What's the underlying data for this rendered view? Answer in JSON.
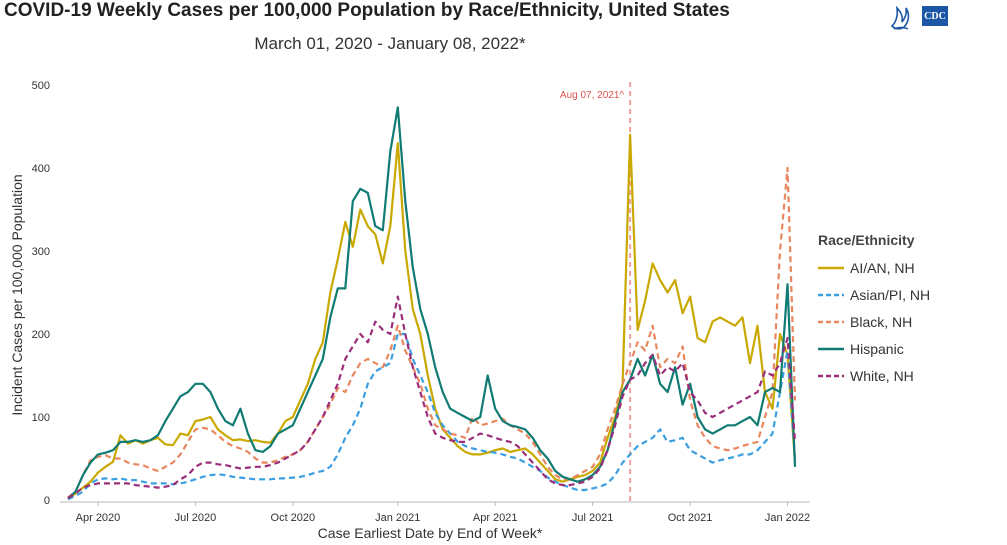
{
  "title": "COVID-19 Weekly Cases per 100,000 Population by Race/Ethnicity, United States",
  "subtitle": "March 01, 2020 - January 08, 2022*",
  "logo": {
    "text": "CDC",
    "icon": "hhs-eagle-icon"
  },
  "chart_data": {
    "type": "line",
    "xlabel": "Case Earliest Date by End of Week*",
    "ylabel": "Incident Cases per 100,000 Population",
    "ylim": [
      0,
      500
    ],
    "yticks": [
      0,
      100,
      200,
      300,
      400,
      500
    ],
    "xticks": [
      {
        "label": "Apr 2020",
        "week": 4
      },
      {
        "label": "Jul 2020",
        "week": 17
      },
      {
        "label": "Oct 2020",
        "week": 30
      },
      {
        "label": "Jan 2021",
        "week": 44
      },
      {
        "label": "Apr 2021",
        "week": 57
      },
      {
        "label": "Jul 2021",
        "week": 70
      },
      {
        "label": "Oct 2021",
        "week": 83
      },
      {
        "label": "Jan 2022",
        "week": 96
      }
    ],
    "annotation": {
      "label": "Aug 07, 2021^",
      "week": 75
    },
    "legend_title": "Race/Ethnicity",
    "legend_position": "right",
    "grid": false,
    "series": [
      {
        "name": "AI/AN, NH",
        "color": "#c9a800",
        "dash": "solid",
        "values": [
          2,
          8,
          15,
          22,
          33,
          40,
          46,
          78,
          68,
          72,
          68,
          72,
          75,
          67,
          66,
          80,
          78,
          95,
          97,
          100,
          85,
          78,
          72,
          73,
          71,
          72,
          70,
          69,
          80,
          95,
          100,
          120,
          140,
          170,
          190,
          250,
          290,
          335,
          305,
          350,
          330,
          320,
          285,
          330,
          430,
          300,
          230,
          200,
          150,
          110,
          85,
          75,
          65,
          58,
          55,
          55,
          57,
          60,
          62,
          58,
          60,
          62,
          55,
          45,
          35,
          25,
          22,
          25,
          28,
          30,
          35,
          45,
          75,
          100,
          140,
          440,
          205,
          240,
          285,
          265,
          250,
          265,
          225,
          245,
          195,
          190,
          215,
          220,
          215,
          210,
          220,
          165,
          210,
          130,
          110,
          200,
          175,
          45
        ]
      },
      {
        "name": "Asian/PI, NH",
        "color": "#3a9ee0",
        "dash": "6,4",
        "values": [
          1,
          5,
          10,
          20,
          25,
          26,
          25,
          26,
          24,
          24,
          22,
          20,
          20,
          20,
          19,
          20,
          22,
          25,
          28,
          30,
          31,
          30,
          28,
          27,
          26,
          25,
          25,
          25,
          26,
          26,
          27,
          28,
          30,
          33,
          35,
          40,
          55,
          75,
          90,
          110,
          140,
          155,
          160,
          165,
          200,
          200,
          170,
          150,
          130,
          105,
          90,
          80,
          70,
          65,
          62,
          60,
          58,
          57,
          55,
          52,
          50,
          45,
          40,
          35,
          27,
          22,
          18,
          15,
          12,
          12,
          14,
          16,
          20,
          30,
          45,
          55,
          65,
          70,
          75,
          85,
          70,
          72,
          75,
          60,
          55,
          50,
          45,
          48,
          50,
          52,
          55,
          55,
          60,
          70,
          80,
          130,
          180,
          50
        ]
      },
      {
        "name": "Black, NH",
        "color": "#e8875e",
        "dash": "6,4",
        "values": [
          3,
          10,
          30,
          48,
          52,
          54,
          50,
          50,
          45,
          43,
          42,
          38,
          35,
          40,
          45,
          55,
          70,
          85,
          87,
          85,
          78,
          70,
          65,
          62,
          58,
          50,
          45,
          45,
          48,
          52,
          55,
          60,
          70,
          85,
          100,
          115,
          135,
          130,
          150,
          165,
          170,
          165,
          160,
          180,
          210,
          180,
          160,
          140,
          110,
          90,
          85,
          80,
          78,
          75,
          100,
          90,
          92,
          95,
          98,
          90,
          85,
          80,
          70,
          55,
          40,
          30,
          25,
          25,
          30,
          35,
          40,
          55,
          85,
          110,
          140,
          165,
          190,
          180,
          210,
          160,
          170,
          165,
          185,
          120,
          90,
          75,
          65,
          62,
          60,
          62,
          65,
          68,
          70,
          100,
          130,
          300,
          400,
          120
        ]
      },
      {
        "name": "Hispanic",
        "color": "#0f7b73",
        "dash": "solid",
        "values": [
          2,
          10,
          30,
          45,
          55,
          57,
          60,
          70,
          70,
          72,
          70,
          72,
          78,
          95,
          110,
          125,
          130,
          140,
          140,
          130,
          110,
          95,
          90,
          110,
          80,
          60,
          58,
          65,
          80,
          85,
          90,
          110,
          130,
          150,
          170,
          220,
          255,
          255,
          360,
          375,
          370,
          330,
          325,
          420,
          473,
          360,
          280,
          230,
          200,
          160,
          130,
          110,
          105,
          100,
          95,
          100,
          150,
          110,
          95,
          90,
          88,
          85,
          75,
          60,
          50,
          35,
          28,
          25,
          22,
          25,
          30,
          40,
          60,
          95,
          130,
          145,
          170,
          150,
          175,
          140,
          130,
          160,
          115,
          140,
          100,
          85,
          80,
          85,
          90,
          90,
          95,
          100,
          90,
          130,
          135,
          130,
          260,
          40
        ]
      },
      {
        "name": "White, NH",
        "color": "#9a2e7a",
        "dash": "6,4",
        "values": [
          2,
          8,
          15,
          18,
          20,
          20,
          20,
          20,
          20,
          18,
          17,
          16,
          15,
          16,
          18,
          25,
          30,
          40,
          45,
          45,
          43,
          42,
          40,
          38,
          39,
          40,
          40,
          42,
          45,
          50,
          55,
          60,
          70,
          85,
          100,
          120,
          140,
          170,
          185,
          200,
          190,
          215,
          205,
          200,
          245,
          200,
          160,
          130,
          100,
          80,
          75,
          72,
          70,
          70,
          75,
          80,
          78,
          75,
          72,
          70,
          65,
          55,
          45,
          35,
          25,
          20,
          18,
          18,
          20,
          22,
          28,
          38,
          60,
          90,
          125,
          145,
          150,
          165,
          175,
          150,
          160,
          155,
          165,
          130,
          120,
          105,
          100,
          105,
          110,
          115,
          120,
          125,
          130,
          155,
          150,
          165,
          195,
          70
        ]
      }
    ]
  }
}
